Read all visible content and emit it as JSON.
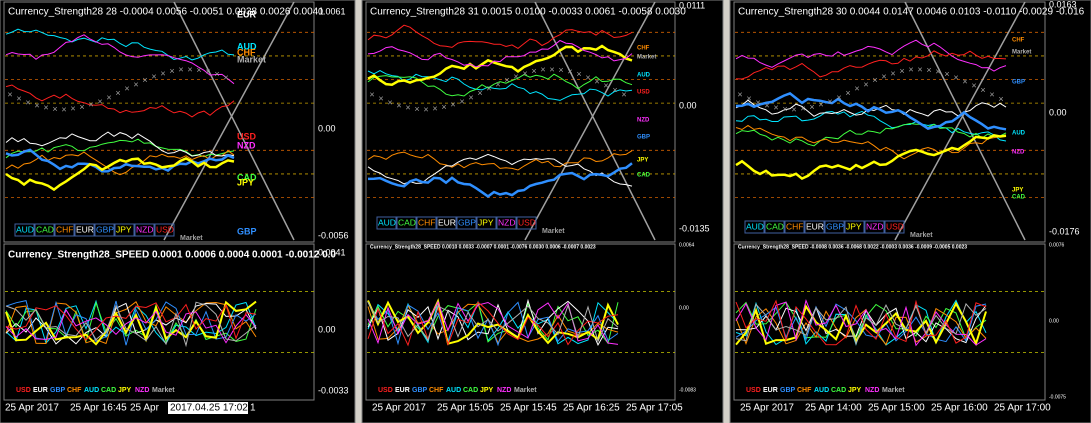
{
  "panels": [
    {
      "upper": {
        "header": "Currency_Strength28 28 -0.0004 0.0056 -0.0051 0.0038 0.0026 0.0041",
        "scale": [
          "0.0061",
          "0.00",
          "-0.0056"
        ],
        "line_labels": [
          {
            "text": "EUR",
            "color": "#ffffff"
          },
          {
            "text": "AUD",
            "color": "#00e5ff"
          },
          {
            "text": "CHF",
            "color": "#ff8c00"
          },
          {
            "text": "Market",
            "color": "#b0b0b0"
          },
          {
            "text": "USD",
            "color": "#ff2020"
          },
          {
            "text": "NZD",
            "color": "#ff30ff"
          },
          {
            "text": "CAD",
            "color": "#40ff40"
          },
          {
            "text": "JPY",
            "color": "#ffff00"
          },
          {
            "text": "GBP",
            "color": "#2f8fff"
          }
        ],
        "legend": [
          {
            "text": "AUD",
            "color": "#00e5ff"
          },
          {
            "text": "CAD",
            "color": "#40ff40"
          },
          {
            "text": "CHF",
            "color": "#ff8c00"
          },
          {
            "text": "EUR",
            "color": "#ffffff"
          },
          {
            "text": "GBP",
            "color": "#2f8fff"
          },
          {
            "text": "JPY",
            "color": "#ffff00"
          },
          {
            "text": "NZD",
            "color": "#ff30ff"
          },
          {
            "text": "USD",
            "color": "#ff2020"
          }
        ],
        "legend_market": "Market"
      },
      "lower": {
        "header": "Currency_Strength28_SPEED  0.0001 0.0006 0.0004 0.0001 -0.0012 0.0",
        "scale": [
          "0.0041",
          "0.00",
          "-0.0033"
        ],
        "legend": [
          {
            "text": "USD",
            "color": "#ff2020"
          },
          {
            "text": "EUR",
            "color": "#ffffff"
          },
          {
            "text": "GBP",
            "color": "#2f8fff"
          },
          {
            "text": "CHF",
            "color": "#ff8c00"
          },
          {
            "text": "AUD",
            "color": "#00e5ff"
          },
          {
            "text": "CAD",
            "color": "#40ff40"
          },
          {
            "text": "JPY",
            "color": "#ffff00"
          },
          {
            "text": "NZD",
            "color": "#ff30ff"
          },
          {
            "text": "Market",
            "color": "#b0b0b0"
          }
        ]
      },
      "time_axis": [
        "25 Apr 2017",
        "25 Apr 16:45",
        "25 Apr",
        "2017.04.25 17:02",
        "1"
      ]
    },
    {
      "upper": {
        "header": "Currency_Strength28 31 0.0015 0.0100 -0.0033 0.0061 -0.0058 0.0030",
        "scale": [
          "0.0111",
          "0.00",
          "-0.0135"
        ],
        "line_labels": [
          {
            "text": "CHF",
            "color": "#ff8c00"
          },
          {
            "text": "Market",
            "color": "#b0b0b0"
          },
          {
            "text": "AUD",
            "color": "#00e5ff"
          },
          {
            "text": "USD",
            "color": "#ff2020"
          },
          {
            "text": "NZD",
            "color": "#ff30ff"
          },
          {
            "text": "GBP",
            "color": "#2f8fff"
          },
          {
            "text": "JPY",
            "color": "#ffff00"
          },
          {
            "text": "CAD",
            "color": "#40ff40"
          }
        ],
        "legend": [
          {
            "text": "AUD",
            "color": "#00e5ff"
          },
          {
            "text": "CAD",
            "color": "#40ff40"
          },
          {
            "text": "CHF",
            "color": "#ff8c00"
          },
          {
            "text": "EUR",
            "color": "#ffffff"
          },
          {
            "text": "GBP",
            "color": "#2f8fff"
          },
          {
            "text": "JPY",
            "color": "#ffff00"
          },
          {
            "text": "NZD",
            "color": "#ff30ff"
          },
          {
            "text": "USD",
            "color": "#ff2020"
          }
        ],
        "legend_market": "Market"
      },
      "lower": {
        "header": "Currency_Strength28_SPEED  0.0010 0.0033 -0.0007 0.0001 -0.0076 0.0030 0.0006 -0.0007 0.0023",
        "scale": [
          "0.0064",
          "0.00",
          "-0.0083"
        ],
        "legend": [
          {
            "text": "USD",
            "color": "#ff2020"
          },
          {
            "text": "EUR",
            "color": "#ffffff"
          },
          {
            "text": "GBP",
            "color": "#2f8fff"
          },
          {
            "text": "CHF",
            "color": "#ff8c00"
          },
          {
            "text": "AUD",
            "color": "#00e5ff"
          },
          {
            "text": "CAD",
            "color": "#40ff40"
          },
          {
            "text": "JPY",
            "color": "#ffff00"
          },
          {
            "text": "NZD",
            "color": "#ff30ff"
          },
          {
            "text": "Market",
            "color": "#b0b0b0"
          }
        ]
      },
      "time_axis": [
        "25 Apr 2017",
        "25 Apr 15:05",
        "25 Apr 15:45",
        "25 Apr 16:25",
        "25 Apr 17:05"
      ]
    },
    {
      "upper": {
        "header": "Currency_Strength28 30 0.0044 0.0147 0.0046 0.0103 -0.0110 -0.0029 -0.016",
        "scale": [
          "0.0163",
          "0.00",
          "-0.0176"
        ],
        "line_labels": [
          {
            "text": "CHF",
            "color": "#ff8c00"
          },
          {
            "text": "Market",
            "color": "#b0b0b0"
          },
          {
            "text": "GBP",
            "color": "#2f8fff"
          },
          {
            "text": "AUD",
            "color": "#00e5ff"
          },
          {
            "text": "NZD",
            "color": "#ff30ff"
          },
          {
            "text": "JPY",
            "color": "#ffff00"
          },
          {
            "text": "CAD",
            "color": "#40ff40"
          }
        ],
        "legend": [
          {
            "text": "AUD",
            "color": "#00e5ff"
          },
          {
            "text": "CAD",
            "color": "#40ff40"
          },
          {
            "text": "CHF",
            "color": "#ff8c00"
          },
          {
            "text": "EUR",
            "color": "#ffffff"
          },
          {
            "text": "GBP",
            "color": "#2f8fff"
          },
          {
            "text": "JPY",
            "color": "#ffff00"
          },
          {
            "text": "NZD",
            "color": "#ff30ff"
          },
          {
            "text": "USD",
            "color": "#ff2020"
          }
        ],
        "legend_market": "Market"
      },
      "lower": {
        "header": "Currency_Strength28_SPEED  -0.0008 0.0036 -0.0068 0.0022 -0.0003 0.0036 -0.0009 -0.0005 0.0023",
        "scale": [
          "0.0076",
          "0.00",
          "-0.0075"
        ],
        "legend": [
          {
            "text": "USD",
            "color": "#ff2020"
          },
          {
            "text": "EUR",
            "color": "#ffffff"
          },
          {
            "text": "GBP",
            "color": "#2f8fff"
          },
          {
            "text": "CHF",
            "color": "#ff8c00"
          },
          {
            "text": "AUD",
            "color": "#00e5ff"
          },
          {
            "text": "CAD",
            "color": "#40ff40"
          },
          {
            "text": "JPY",
            "color": "#ffff00"
          },
          {
            "text": "NZD",
            "color": "#ff30ff"
          },
          {
            "text": "Market",
            "color": "#b0b0b0"
          }
        ]
      },
      "time_axis": [
        "25 Apr 2017",
        "25 Apr 14:00",
        "25 Apr 15:00",
        "25 Apr 16:00",
        "25 Apr 17:00"
      ]
    }
  ]
}
